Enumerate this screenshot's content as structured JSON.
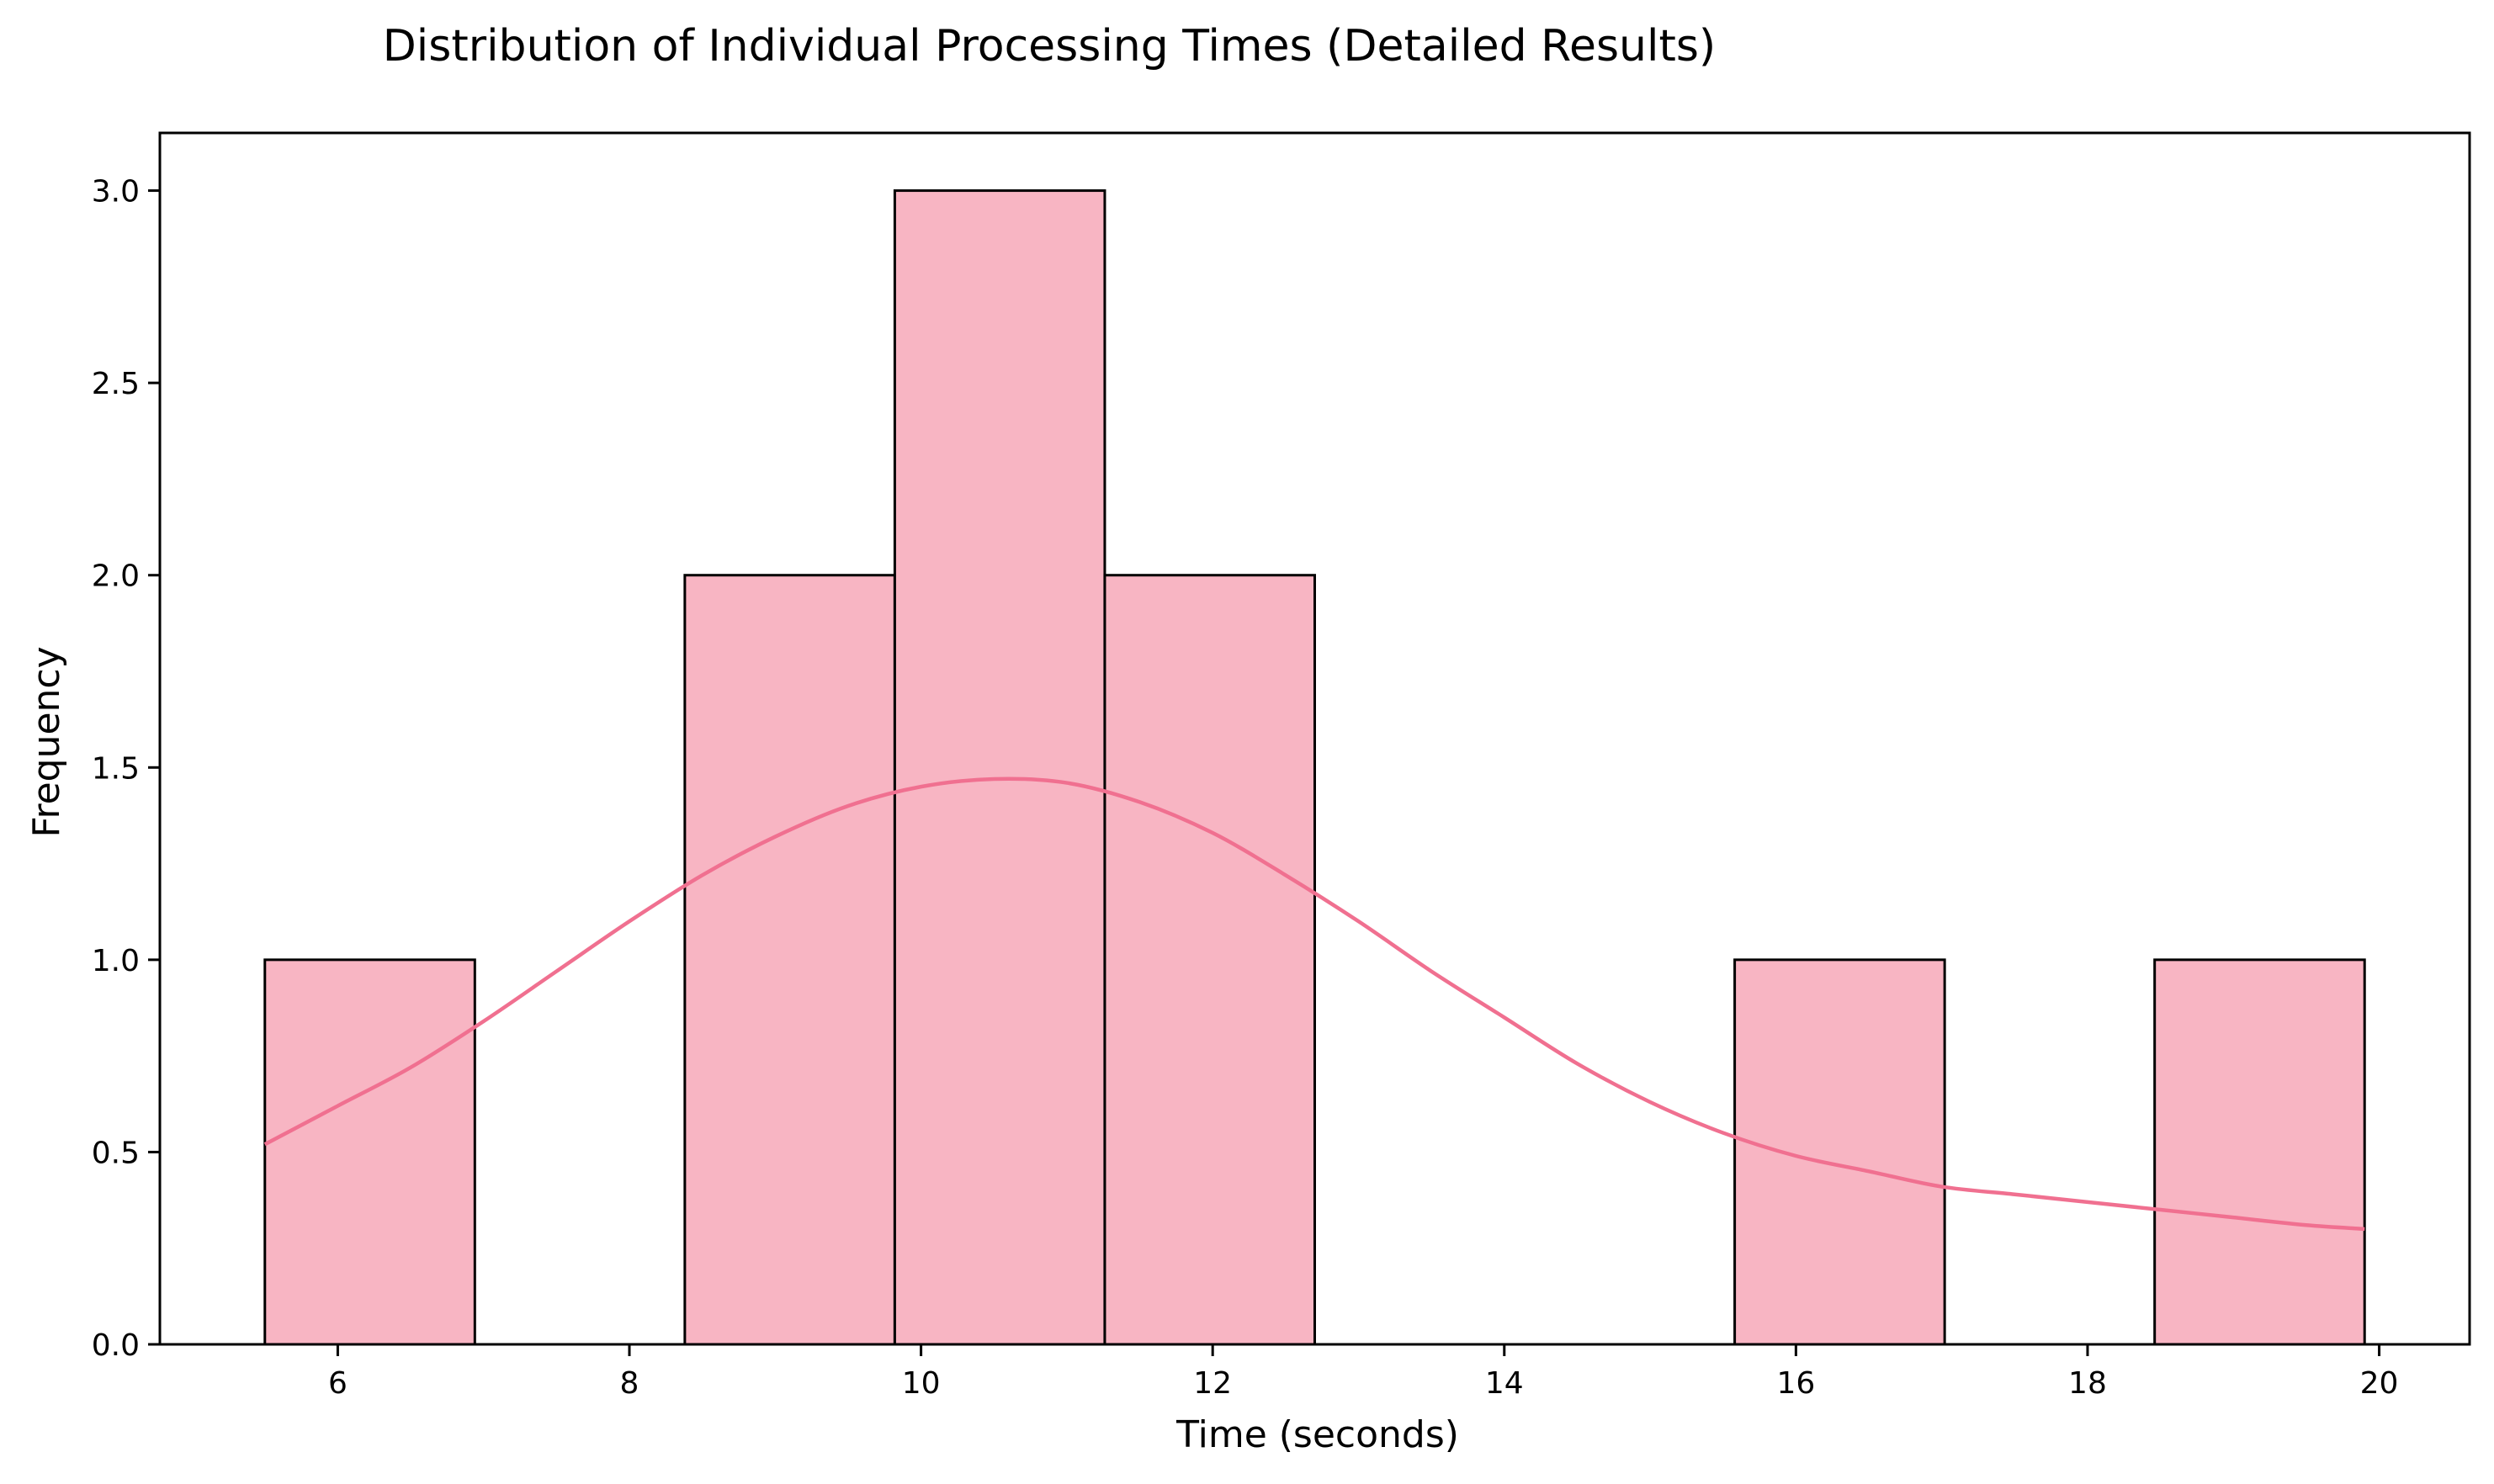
{
  "chart_data": {
    "type": "histogram",
    "title": "Distribution of Individual Processing Times (Detailed Results)",
    "xlabel": "Time (seconds)",
    "ylabel": "Frequency",
    "xlim": [
      4.78,
      20.62
    ],
    "ylim": [
      0,
      3.15
    ],
    "xticks": [
      "6",
      "8",
      "10",
      "12",
      "14",
      "16",
      "18",
      "20"
    ],
    "yticks": [
      "0.0",
      "0.5",
      "1.0",
      "1.5",
      "2.0",
      "2.5",
      "3.0"
    ],
    "grid": false,
    "bins": [
      {
        "x0": 5.5,
        "x1": 6.94,
        "count": 1
      },
      {
        "x0": 6.94,
        "x1": 8.38,
        "count": 0
      },
      {
        "x0": 8.38,
        "x1": 9.82,
        "count": 2
      },
      {
        "x0": 9.82,
        "x1": 11.26,
        "count": 3
      },
      {
        "x0": 11.26,
        "x1": 12.7,
        "count": 2
      },
      {
        "x0": 12.7,
        "x1": 14.14,
        "count": 0
      },
      {
        "x0": 14.14,
        "x1": 15.58,
        "count": 0
      },
      {
        "x0": 15.58,
        "x1": 17.02,
        "count": 1
      },
      {
        "x0": 17.02,
        "x1": 18.46,
        "count": 0
      },
      {
        "x0": 18.46,
        "x1": 19.9,
        "count": 1
      }
    ],
    "kde": {
      "x": [
        5.5,
        6.0,
        6.5,
        7.0,
        7.5,
        8.0,
        8.5,
        9.0,
        9.5,
        10.0,
        10.5,
        11.0,
        11.5,
        12.0,
        12.5,
        13.0,
        13.5,
        14.0,
        14.5,
        15.0,
        15.5,
        16.0,
        16.5,
        17.0,
        17.5,
        18.0,
        18.5,
        19.0,
        19.5,
        19.9
      ],
      "y": [
        0.52,
        0.62,
        0.72,
        0.84,
        0.97,
        1.1,
        1.22,
        1.32,
        1.4,
        1.45,
        1.47,
        1.46,
        1.41,
        1.33,
        1.22,
        1.1,
        0.97,
        0.85,
        0.73,
        0.63,
        0.55,
        0.49,
        0.45,
        0.41,
        0.39,
        0.37,
        0.35,
        0.33,
        0.31,
        0.3
      ]
    },
    "colors": {
      "bar_fill": "#f8b5c3",
      "bar_edge": "#000000",
      "kde_line": "#f07090",
      "axis": "#000000"
    }
  }
}
